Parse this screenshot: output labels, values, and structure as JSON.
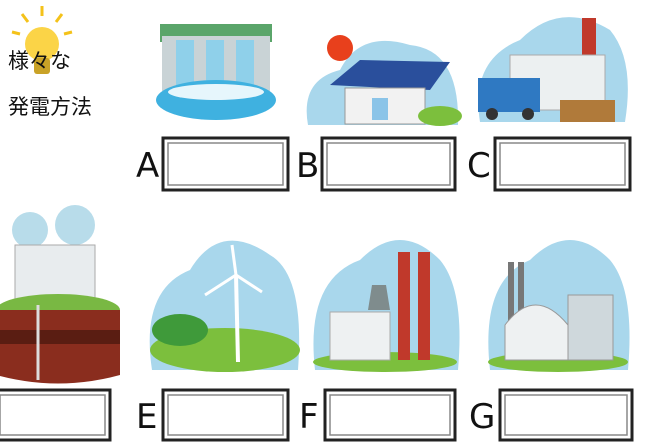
{
  "title": {
    "line1": "様々な",
    "line2": "発電方法"
  },
  "labels": [
    "A",
    "B",
    "C",
    "E",
    "F",
    "G"
  ]
}
